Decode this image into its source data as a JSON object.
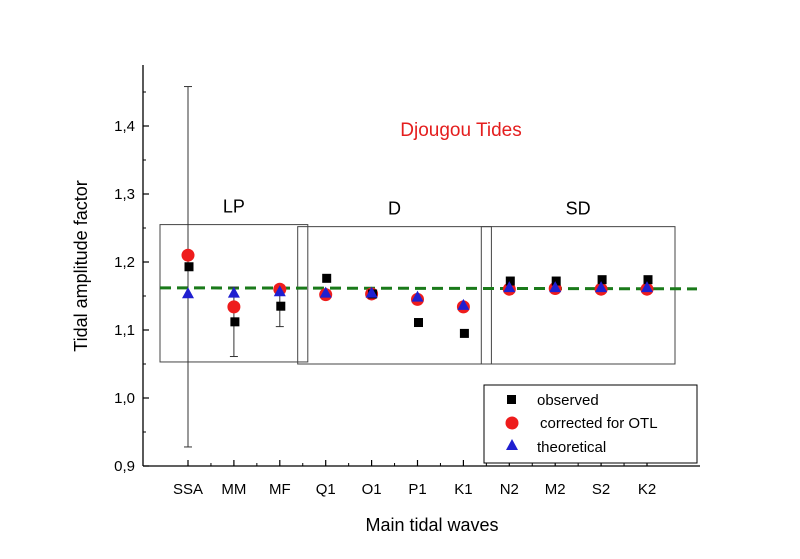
{
  "chart_data": {
    "type": "scatter",
    "title": "Djougou Tides",
    "title_color": "#e41e1e",
    "xlabel": "Main tidal waves",
    "ylabel": "Tidal amplitude factor",
    "categories": [
      "SSA",
      "MM",
      "MF",
      "Q1",
      "O1",
      "P1",
      "K1",
      "N2",
      "M2",
      "S2",
      "K2"
    ],
    "ylim": [
      0.9,
      1.5
    ],
    "yticks": [
      "0,9",
      "1,0",
      "1,1",
      "1,2",
      "1,3",
      "1,4"
    ],
    "ytick_values": [
      0.9,
      1.0,
      1.1,
      1.2,
      1.3,
      1.4
    ],
    "groups": [
      {
        "label": "LP",
        "from": 0,
        "to": 2,
        "ymin": 1.053,
        "ymax": 1.255
      },
      {
        "label": "D",
        "from": 3,
        "to": 6,
        "ymin": 1.05,
        "ymax": 1.252
      },
      {
        "label": "SD",
        "from": 7,
        "to": 10,
        "ymin": 1.05,
        "ymax": 1.252
      }
    ],
    "reference_line": {
      "value": 1.162,
      "color": "#1a7a1a",
      "style": "dashed"
    },
    "series": [
      {
        "name": "observed",
        "marker": "square",
        "color": "#000000",
        "values": [
          1.193,
          1.112,
          1.135,
          1.176,
          1.153,
          1.111,
          1.095,
          1.172,
          1.172,
          1.174,
          1.174
        ],
        "error_low": [
          0.928,
          1.061,
          1.105,
          null,
          null,
          null,
          null,
          null,
          null,
          null,
          null
        ],
        "error_high": [
          1.458,
          1.163,
          1.165,
          null,
          null,
          null,
          null,
          null,
          null,
          null,
          null
        ]
      },
      {
        "name": "corrected for OTL",
        "marker": "circle",
        "color": "#ee1c1c",
        "values": [
          1.21,
          1.134,
          1.16,
          1.152,
          1.153,
          1.145,
          1.134,
          1.16,
          1.161,
          1.16,
          1.16
        ]
      },
      {
        "name": "theoretical",
        "marker": "triangle",
        "color": "#1f1fd0",
        "values": [
          1.154,
          1.155,
          1.157,
          1.155,
          1.155,
          1.149,
          1.137,
          1.163,
          1.163,
          1.163,
          1.163
        ]
      }
    ],
    "legend_position": "bottom-right",
    "grid": false
  }
}
